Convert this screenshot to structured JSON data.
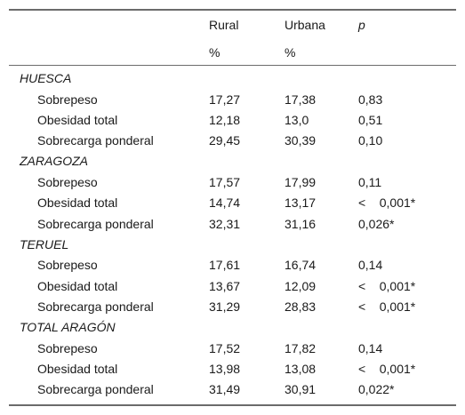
{
  "header": {
    "columns": [
      "Rural",
      "Urbana",
      "p"
    ],
    "units": [
      "%",
      "%"
    ]
  },
  "sections": [
    {
      "title": "HUESCA",
      "rows": [
        {
          "label": "Sobrepeso",
          "values": [
            "17,27",
            "17,38",
            "0,83"
          ]
        },
        {
          "label": "Obesidad total",
          "values": [
            "12,18",
            "13,0",
            "0,51"
          ]
        },
        {
          "label": "Sobrecarga ponderal",
          "values": [
            "29,45",
            "30,39",
            "0,10"
          ]
        }
      ]
    },
    {
      "title": "ZARAGOZA",
      "rows": [
        {
          "label": "Sobrepeso",
          "values": [
            "17,57",
            "17,99",
            "0,11"
          ]
        },
        {
          "label": "Obesidad total",
          "values": [
            "14,74",
            "13,17",
            "<    0,001*"
          ]
        },
        {
          "label": "Sobrecarga ponderal",
          "values": [
            "32,31",
            "31,16",
            "0,026*"
          ]
        }
      ]
    },
    {
      "title": "TERUEL",
      "rows": [
        {
          "label": "Sobrepeso",
          "values": [
            "17,61",
            "16,74",
            "0,14"
          ]
        },
        {
          "label": "Obesidad total",
          "values": [
            "13,67",
            "12,09",
            "<    0,001*"
          ]
        },
        {
          "label": "Sobrecarga ponderal",
          "values": [
            "31,29",
            "28,83",
            "<    0,001*"
          ]
        }
      ]
    },
    {
      "title": "TOTAL ARAGÓN",
      "rows": [
        {
          "label": "Sobrepeso",
          "values": [
            "17,52",
            "17,82",
            "0,14"
          ]
        },
        {
          "label": "Obesidad total",
          "values": [
            "13,98",
            "13,08",
            "<    0,001*"
          ]
        },
        {
          "label": "Sobrecarga ponderal",
          "values": [
            "31,49",
            "30,91",
            "0,022*"
          ]
        }
      ]
    }
  ]
}
